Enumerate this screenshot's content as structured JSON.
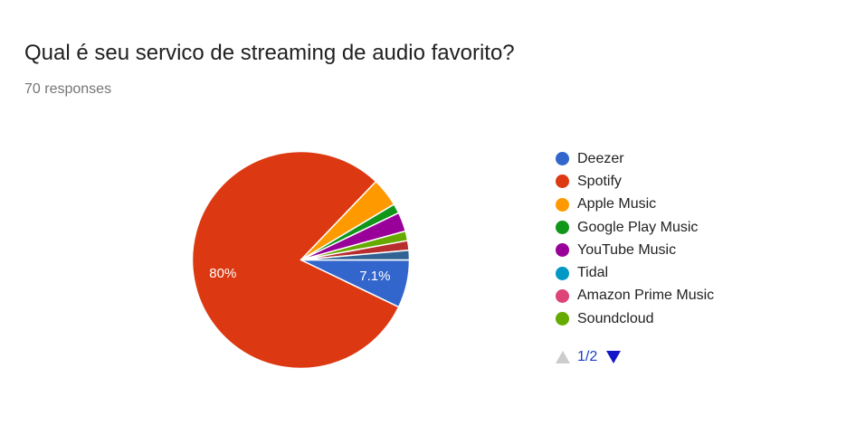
{
  "header": {
    "title": "Qual é seu servico de streaming de audio favorito?",
    "subtitle": "70 responses"
  },
  "chart_data": {
    "type": "pie",
    "title": "Qual é seu servico de streaming de audio favorito?",
    "total_responses": 70,
    "slices": [
      {
        "label": "Deezer",
        "value": 5,
        "percent_label": "7.1%",
        "color": "#3366cc"
      },
      {
        "label": "Spotify",
        "value": 56,
        "percent_label": "80%",
        "color": "#dc3912"
      },
      {
        "label": "Apple Music",
        "value": 3,
        "color": "#ff9900"
      },
      {
        "label": "Google Play Music",
        "value": 1,
        "color": "#109618"
      },
      {
        "label": "YouTube Music",
        "value": 2,
        "color": "#990099"
      },
      {
        "label": "Tidal",
        "value": 0,
        "color": "#0099c6"
      },
      {
        "label": "Amazon Prime Music",
        "value": 0,
        "color": "#dd4477"
      },
      {
        "label": "Soundcloud",
        "value": 1,
        "color": "#66aa00"
      },
      {
        "label": "",
        "value": 1,
        "color": "#b82e2e"
      },
      {
        "label": "",
        "value": 1,
        "color": "#316395"
      }
    ],
    "legend_position": "right"
  },
  "legend": {
    "items": [
      {
        "label": "Deezer",
        "color": "#3366cc"
      },
      {
        "label": "Spotify",
        "color": "#dc3912"
      },
      {
        "label": "Apple Music",
        "color": "#ff9900"
      },
      {
        "label": "Google Play Music",
        "color": "#109618"
      },
      {
        "label": "YouTube Music",
        "color": "#990099"
      },
      {
        "label": "Tidal",
        "color": "#0099c6"
      },
      {
        "label": "Amazon Prime Music",
        "color": "#dd4477"
      },
      {
        "label": "Soundcloud",
        "color": "#66aa00"
      }
    ],
    "page_indicator": "1/2",
    "prev_icon": "triangle-up-icon",
    "next_icon": "triangle-down-icon"
  }
}
